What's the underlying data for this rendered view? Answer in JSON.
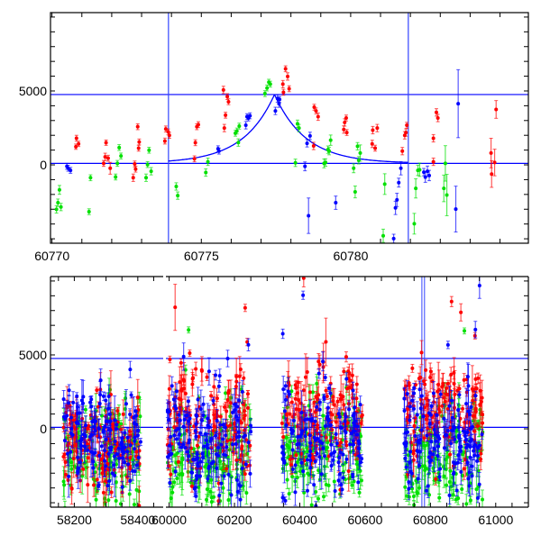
{
  "chart_data": [
    {
      "type": "scatter",
      "panel": "top",
      "title": "",
      "xlabel": "",
      "ylabel": "",
      "xlim": [
        60769.95,
        60785.95
      ],
      "ylim": [
        -5300,
        10300
      ],
      "x_ticks_major": [
        60770,
        60775,
        60780
      ],
      "x_tick_labels": [
        "60770",
        "60775",
        "60780"
      ],
      "x_minor_step": 1,
      "y_tick_labels": [
        {
          "value": 0,
          "label": "0"
        },
        {
          "value": 5000,
          "label": "5000"
        }
      ],
      "y_minor_step": 1000,
      "hlines": [
        100,
        4760
      ],
      "vlines": [
        60773.9,
        60781.93
      ],
      "model": {
        "t0": 60777.45,
        "peak": 4760,
        "baseline": 100,
        "width": 1.0,
        "range": [
          60773.9,
          60781.93
        ]
      },
      "colors": {
        "red": "#ff0000",
        "green": "#00e000",
        "blue": "#0000ff"
      },
      "series": [
        {
          "name": "red",
          "points": [
            [
              60770.82,
              1800,
              200
            ],
            [
              60770.8,
              1230,
              180
            ],
            [
              60770.89,
              1420,
              180
            ],
            [
              60771.81,
              1500,
              180
            ],
            [
              60771.78,
              540,
              250
            ],
            [
              60771.88,
              450,
              200
            ],
            [
              60771.73,
              100,
              200
            ],
            [
              60771.95,
              -230,
              400
            ],
            [
              60772.87,
              2580,
              200
            ],
            [
              60772.92,
              1550,
              200
            ],
            [
              60772.9,
              1130,
              200
            ],
            [
              60772.77,
              60,
              200
            ],
            [
              60772.8,
              -290,
              200
            ],
            [
              60772.72,
              -870,
              250
            ],
            [
              60773.78,
              1610,
              200
            ],
            [
              60773.81,
              2430,
              200
            ],
            [
              60773.89,
              2230,
              200
            ],
            [
              60773.93,
              2000,
              200
            ],
            [
              60774.8,
              1500,
              200
            ],
            [
              60774.85,
              2580,
              200
            ],
            [
              60774.9,
              2720,
              200
            ],
            [
              60774.77,
              410,
              200
            ],
            [
              60775.74,
              5070,
              250
            ],
            [
              60775.87,
              4620,
              200
            ],
            [
              60775.91,
              4270,
              200
            ],
            [
              60775.81,
              3360,
              200
            ],
            [
              60775.77,
              2490,
              250
            ],
            [
              60777.73,
              5460,
              250
            ],
            [
              60777.82,
              6500,
              200
            ],
            [
              60777.89,
              5980,
              250
            ],
            [
              60777.94,
              5150,
              200
            ],
            [
              60777.75,
              4910,
              200
            ],
            [
              60778.78,
              3900,
              200
            ],
            [
              60778.84,
              3650,
              200
            ],
            [
              60778.91,
              3260,
              250
            ],
            [
              60778.76,
              1280,
              250
            ],
            [
              60779.8,
              2870,
              250
            ],
            [
              60779.85,
              3170,
              200
            ],
            [
              60779.77,
              2390,
              250
            ],
            [
              60779.87,
              2190,
              200
            ],
            [
              60780.74,
              2350,
              250
            ],
            [
              60780.89,
              2490,
              250
            ],
            [
              60780.72,
              1420,
              250
            ],
            [
              60780.82,
              1130,
              200
            ],
            [
              60781.73,
              930,
              250
            ],
            [
              60781.81,
              2000,
              250
            ],
            [
              60781.88,
              2680,
              200
            ],
            [
              60781.85,
              2190,
              250
            ],
            [
              60782.77,
              1800,
              250
            ],
            [
              60782.87,
              3550,
              250
            ],
            [
              60782.92,
              3170,
              250
            ],
            [
              60782.77,
              210,
              250
            ],
            [
              60784.7,
              800,
              1000
            ],
            [
              60784.72,
              -620,
              900
            ],
            [
              60784.82,
              160,
              900
            ],
            [
              60784.87,
              3750,
              600
            ]
          ]
        },
        {
          "name": "green",
          "points": [
            [
              60770.15,
              -3010,
              250
            ],
            [
              60770.2,
              -2560,
              250
            ],
            [
              60770.3,
              -2850,
              250
            ],
            [
              60770.25,
              -1690,
              300
            ],
            [
              60771.29,
              -870,
              200
            ],
            [
              60771.24,
              -3170,
              200
            ],
            [
              60772.25,
              1170,
              200
            ],
            [
              60772.31,
              600,
              200
            ],
            [
              60772.19,
              100,
              200
            ],
            [
              60772.13,
              -820,
              200
            ],
            [
              60773.25,
              990,
              200
            ],
            [
              60773.2,
              20,
              200
            ],
            [
              60773.32,
              -430,
              250
            ],
            [
              60773.15,
              -870,
              250
            ],
            [
              60774.16,
              -1460,
              250
            ],
            [
              60774.21,
              -2080,
              250
            ],
            [
              60775.22,
              210,
              250
            ],
            [
              60775.15,
              -520,
              250
            ],
            [
              60776.14,
              2140,
              200
            ],
            [
              60776.19,
              2290,
              200
            ],
            [
              60776.27,
              2620,
              200
            ],
            [
              60776.24,
              1510,
              250
            ],
            [
              60777.13,
              4820,
              200
            ],
            [
              60777.2,
              5200,
              200
            ],
            [
              60777.26,
              5590,
              200
            ],
            [
              60777.31,
              5460,
              200
            ],
            [
              60778.22,
              2780,
              250
            ],
            [
              60778.27,
              2490,
              250
            ],
            [
              60778.15,
              140,
              250
            ],
            [
              60779.11,
              100,
              300
            ],
            [
              60779.16,
              160,
              250
            ],
            [
              60779.24,
              1030,
              250
            ],
            [
              60779.28,
              930,
              250
            ],
            [
              60779.33,
              1670,
              350
            ],
            [
              60780.1,
              -230,
              300
            ],
            [
              60780.15,
              -1830,
              400
            ],
            [
              60780.23,
              1260,
              250
            ],
            [
              60780.32,
              800,
              550
            ],
            [
              60780.27,
              310,
              250
            ],
            [
              60781.09,
              -4800,
              450
            ],
            [
              60781.14,
              -1300,
              700
            ],
            [
              60782.13,
              -3980,
              700
            ],
            [
              60782.18,
              -1590,
              650
            ],
            [
              60782.25,
              -370,
              350
            ],
            [
              60782.31,
              -330,
              450
            ],
            [
              60783.12,
              -1590,
              900
            ],
            [
              60783.17,
              100,
              1200
            ],
            [
              60783.22,
              -2040,
              1400
            ]
          ]
        },
        {
          "name": "blue",
          "points": [
            [
              60770.5,
              -100,
              200
            ],
            [
              60770.54,
              -230,
              200
            ],
            [
              60770.62,
              -370,
              200
            ],
            [
              60775.56,
              1090,
              200
            ],
            [
              60775.59,
              930,
              200
            ],
            [
              60776.49,
              2680,
              250
            ],
            [
              60776.53,
              3260,
              200
            ],
            [
              60776.58,
              3170,
              200
            ],
            [
              60776.63,
              3320,
              200
            ],
            [
              60777.48,
              3650,
              250
            ],
            [
              60777.55,
              4490,
              250
            ],
            [
              60777.62,
              4430,
              200
            ],
            [
              60777.6,
              4140,
              250
            ],
            [
              60778.47,
              -100,
              300
            ],
            [
              60778.54,
              1460,
              250
            ],
            [
              60778.64,
              1960,
              250
            ],
            [
              60778.59,
              -3440,
              1200
            ],
            [
              60779.5,
              -2560,
              450
            ],
            [
              60781.44,
              -4990,
              300
            ],
            [
              60781.5,
              -2910,
              450
            ],
            [
              60781.55,
              -2370,
              450
            ],
            [
              60781.61,
              -1200,
              300
            ],
            [
              60781.68,
              -230,
              450
            ],
            [
              60782.45,
              -490,
              250
            ],
            [
              60782.5,
              -830,
              350
            ],
            [
              60782.57,
              -430,
              350
            ],
            [
              60782.63,
              -720,
              350
            ],
            [
              60783.52,
              -2990,
              1550
            ],
            [
              60783.6,
              4140,
              2300
            ]
          ]
        }
      ]
    },
    {
      "type": "scatter",
      "panel": "bottom",
      "title": "",
      "xlabel": "",
      "ylabel": "",
      "broken_x_axis": [
        {
          "xlim": [
            58125,
            58480
          ],
          "x_ticks_major": [
            58200,
            58400
          ],
          "x_tick_labels": [
            "58200",
            "58400"
          ],
          "x_minor_step": 50
        },
        {
          "xlim": [
            59990,
            61100
          ],
          "x_ticks_major": [
            60000,
            60200,
            60400,
            60600,
            60800,
            61000
          ],
          "x_tick_labels": [
            "60000",
            "60200",
            "60400",
            "60600",
            "60800",
            "61000"
          ],
          "x_minor_step": 50
        }
      ],
      "ylim": [
        -5300,
        10300
      ],
      "y_tick_labels": [
        {
          "value": 0,
          "label": "0"
        },
        {
          "value": 5000,
          "label": "5000"
        }
      ],
      "y_minor_step": 1000,
      "hlines": [
        100,
        4760
      ],
      "vlines": [
        60773.9,
        60781.93
      ],
      "seasons_summary": [
        {
          "range": [
            58165,
            58410
          ],
          "red_center": -1000,
          "green_center": -1500,
          "blue_center": -300,
          "spread": 1600
        },
        {
          "range": [
            59995,
            60250
          ],
          "red_center": 800,
          "green_center": -1800,
          "blue_center": -600,
          "spread": 1900
        },
        {
          "range": [
            60345,
            60595
          ],
          "red_center": 800,
          "green_center": -1600,
          "blue_center": -700,
          "spread": 1900
        },
        {
          "range": [
            60720,
            60960
          ],
          "red_center": 1300,
          "green_center": -1700,
          "blue_center": -900,
          "spread": 1700
        }
      ],
      "points_per_color_per_season": 140
    }
  ]
}
